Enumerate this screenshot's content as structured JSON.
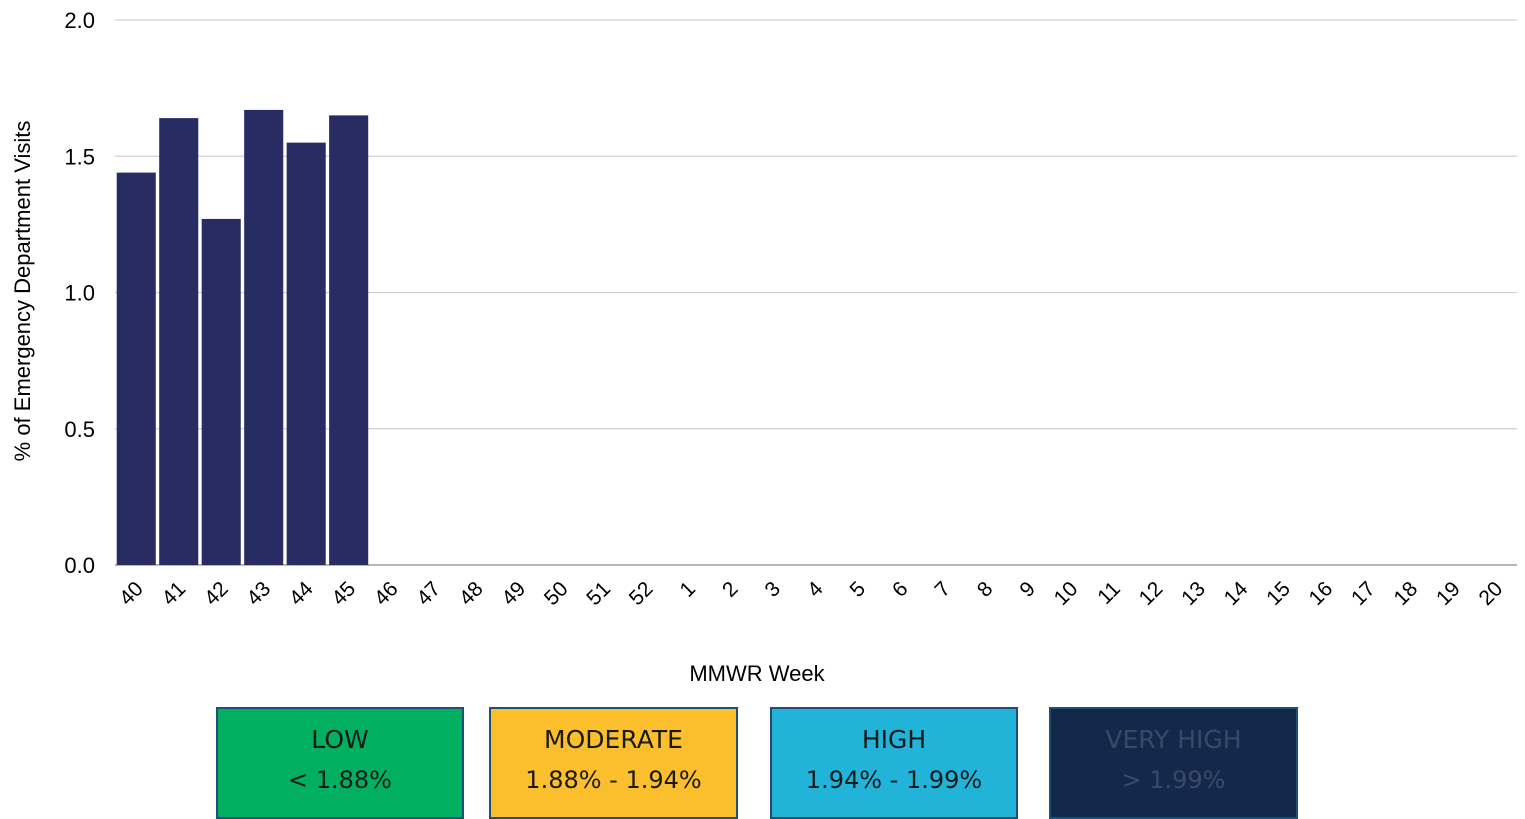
{
  "chart_data": {
    "type": "bar",
    "title": "",
    "xlabel": "MMWR Week",
    "ylabel": "% of Emergency Department Visits",
    "ylim": [
      0,
      2.0
    ],
    "yticks": [
      "0.0",
      "0.5",
      "1.0",
      "1.5",
      "2.0"
    ],
    "grid": true,
    "bar_color": "#272d63",
    "categories": [
      "40",
      "41",
      "42",
      "43",
      "44",
      "45",
      "46",
      "47",
      "48",
      "49",
      "50",
      "51",
      "52",
      "1",
      "2",
      "3",
      "4",
      "5",
      "6",
      "7",
      "8",
      "9",
      "10",
      "11",
      "12",
      "13",
      "14",
      "15",
      "16",
      "17",
      "18",
      "19",
      "20"
    ],
    "values": [
      1.44,
      1.64,
      1.27,
      1.67,
      1.55,
      1.65,
      null,
      null,
      null,
      null,
      null,
      null,
      null,
      null,
      null,
      null,
      null,
      null,
      null,
      null,
      null,
      null,
      null,
      null,
      null,
      null,
      null,
      null,
      null,
      null,
      null,
      null,
      null
    ]
  },
  "legend": [
    {
      "level": "LOW",
      "range": "< 1.88%",
      "color": "#00b060",
      "text_color": "#1a1a1a"
    },
    {
      "level": "MODERATE",
      "range": "1.88% - 1.94%",
      "color": "#fbbf2e",
      "text_color": "#1a1a1a"
    },
    {
      "level": "HIGH",
      "range": "1.94% - 1.99%",
      "color": "#22b3d8",
      "text_color": "#1a1a1a"
    },
    {
      "level": "VERY HIGH",
      "range": "> 1.99%",
      "color": "#14284b",
      "text_color": "#3a4a66"
    }
  ]
}
